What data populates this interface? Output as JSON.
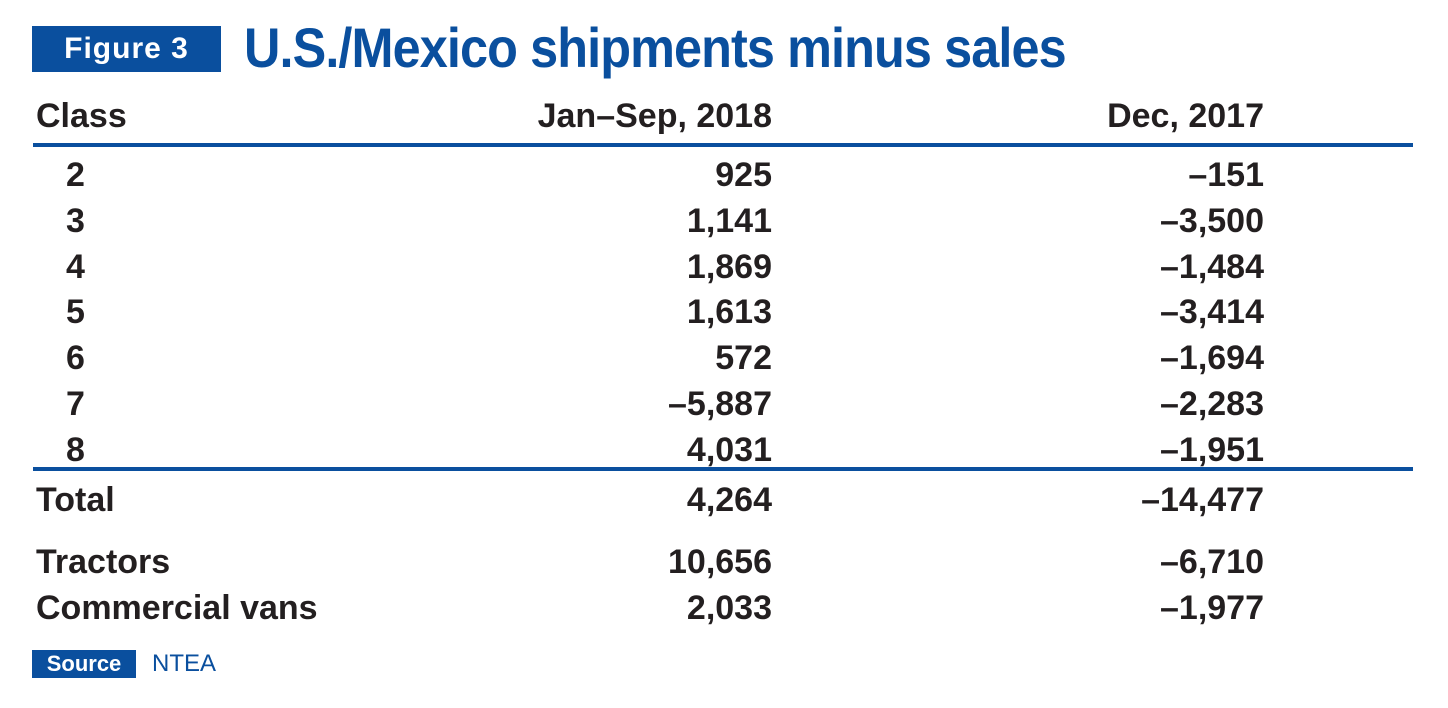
{
  "figure_label": "Figure 3",
  "title": "U.S./Mexico shipments minus sales",
  "source_label": "Source",
  "source_text": "NTEA",
  "chart_data": {
    "type": "table",
    "title": "U.S./Mexico shipments minus sales",
    "columns": [
      "Class",
      "Jan–Sep, 2018",
      "Dec, 2017"
    ],
    "rows": [
      {
        "label": "2",
        "jan_sep_2018": "925",
        "dec_2017": "–151"
      },
      {
        "label": "3",
        "jan_sep_2018": "1,141",
        "dec_2017": "–3,500"
      },
      {
        "label": "4",
        "jan_sep_2018": "1,869",
        "dec_2017": "–1,484"
      },
      {
        "label": "5",
        "jan_sep_2018": "1,613",
        "dec_2017": "–3,414"
      },
      {
        "label": "6",
        "jan_sep_2018": "572",
        "dec_2017": "–1,694"
      },
      {
        "label": "7",
        "jan_sep_2018": "–5,887",
        "dec_2017": "–2,283"
      },
      {
        "label": "8",
        "jan_sep_2018": "4,031",
        "dec_2017": "–1,951"
      }
    ],
    "total": {
      "label": "Total",
      "jan_sep_2018": "4,264",
      "dec_2017": "–14,477"
    },
    "extra_rows": [
      {
        "label": "Tractors",
        "jan_sep_2018": "10,656",
        "dec_2017": "–6,710"
      },
      {
        "label": "Commercial vans",
        "jan_sep_2018": "2,033",
        "dec_2017": "–1,977"
      }
    ]
  }
}
